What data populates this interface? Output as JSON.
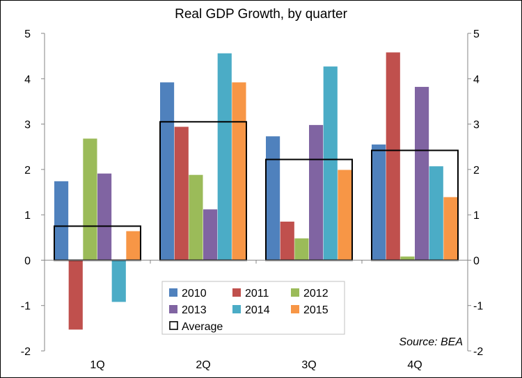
{
  "chart_data": {
    "type": "bar",
    "title": "Real GDP Growth, by quarter",
    "categories": [
      "1Q",
      "2Q",
      "3Q",
      "4Q"
    ],
    "series": [
      {
        "name": "2010",
        "color": "#4F81BD",
        "values": [
          1.74,
          3.92,
          2.73,
          2.55
        ]
      },
      {
        "name": "2011",
        "color": "#C0504D",
        "values": [
          -1.53,
          2.94,
          0.85,
          4.58
        ]
      },
      {
        "name": "2012",
        "color": "#9BBB59",
        "values": [
          2.68,
          1.88,
          0.48,
          0.08
        ]
      },
      {
        "name": "2013",
        "color": "#8064A2",
        "values": [
          1.91,
          1.12,
          2.98,
          3.82
        ]
      },
      {
        "name": "2014",
        "color": "#4BACC6",
        "values": [
          -0.92,
          4.56,
          4.27,
          2.07
        ]
      },
      {
        "name": "2015",
        "color": "#F79646",
        "values": [
          0.64,
          3.92,
          1.99,
          1.39
        ]
      }
    ],
    "average": {
      "name": "Average",
      "values": [
        0.75,
        3.05,
        2.22,
        2.42
      ]
    },
    "ylim": [
      -2,
      5
    ],
    "yticks": [
      "-2",
      "-1",
      "0",
      "1",
      "2",
      "3",
      "4",
      "5"
    ],
    "secondary_axis": true,
    "grid": false,
    "legend_position": "bottom-center",
    "source": "Source: BEA"
  }
}
